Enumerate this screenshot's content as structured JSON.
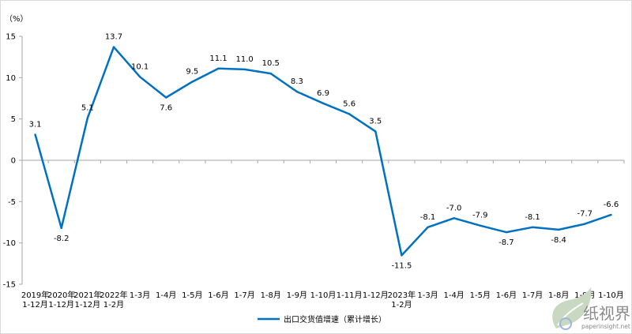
{
  "chart_data": {
    "type": "line",
    "unit": "（%）",
    "categories": [
      [
        "2019年",
        "1-12月"
      ],
      [
        "2020年",
        "1-12月"
      ],
      [
        "2021年",
        "1-12月"
      ],
      [
        "2022年",
        "1-2月"
      ],
      [
        "1-3月"
      ],
      [
        "1-4月"
      ],
      [
        "1-5月"
      ],
      [
        "1-6月"
      ],
      [
        "1-7月"
      ],
      [
        "1-8月"
      ],
      [
        "1-9月"
      ],
      [
        "1-10月"
      ],
      [
        "1-11月"
      ],
      [
        "1-12月"
      ],
      [
        "2023年",
        "1-2月"
      ],
      [
        "1-3月"
      ],
      [
        "1-4月"
      ],
      [
        "1-5月"
      ],
      [
        "1-6月"
      ],
      [
        "1-7月"
      ],
      [
        "1-8月"
      ],
      [
        "1-9月"
      ],
      [
        "1-10月"
      ]
    ],
    "series": [
      {
        "name": "出口交货值增速（累计增长）",
        "color": "#0070c0",
        "values": [
          3.1,
          -8.2,
          5.1,
          13.7,
          10.1,
          7.6,
          9.5,
          11.1,
          11.0,
          10.5,
          8.3,
          6.9,
          5.6,
          3.5,
          -11.5,
          -8.1,
          -7.0,
          -7.9,
          -8.7,
          -8.1,
          -8.4,
          -7.7,
          -6.6
        ],
        "labels": [
          "3.1",
          "-8.2",
          "5.1",
          "13.7",
          "10.1",
          "7.6",
          "9.5",
          "11.1",
          "11.0",
          "10.5",
          "8.3",
          "6.9",
          "5.6",
          "3.5",
          "-11.5",
          "-8.1",
          "-7.0",
          "-7.9",
          "-8.7",
          "-8.1",
          "-8.4",
          "-7.7",
          "-6.6"
        ]
      }
    ],
    "ylim": [
      -15,
      15
    ],
    "yticks": [
      "15",
      "10",
      "5",
      "0",
      "-5",
      "-10",
      "-15"
    ],
    "ytick_values": [
      15,
      10,
      5,
      0,
      -5,
      -10,
      -15
    ],
    "grid": false,
    "legend_position": "bottom-center"
  },
  "watermark": {
    "text": "纸视界",
    "url": "paperinsight.net",
    "icon": "leaf-logo-icon"
  }
}
